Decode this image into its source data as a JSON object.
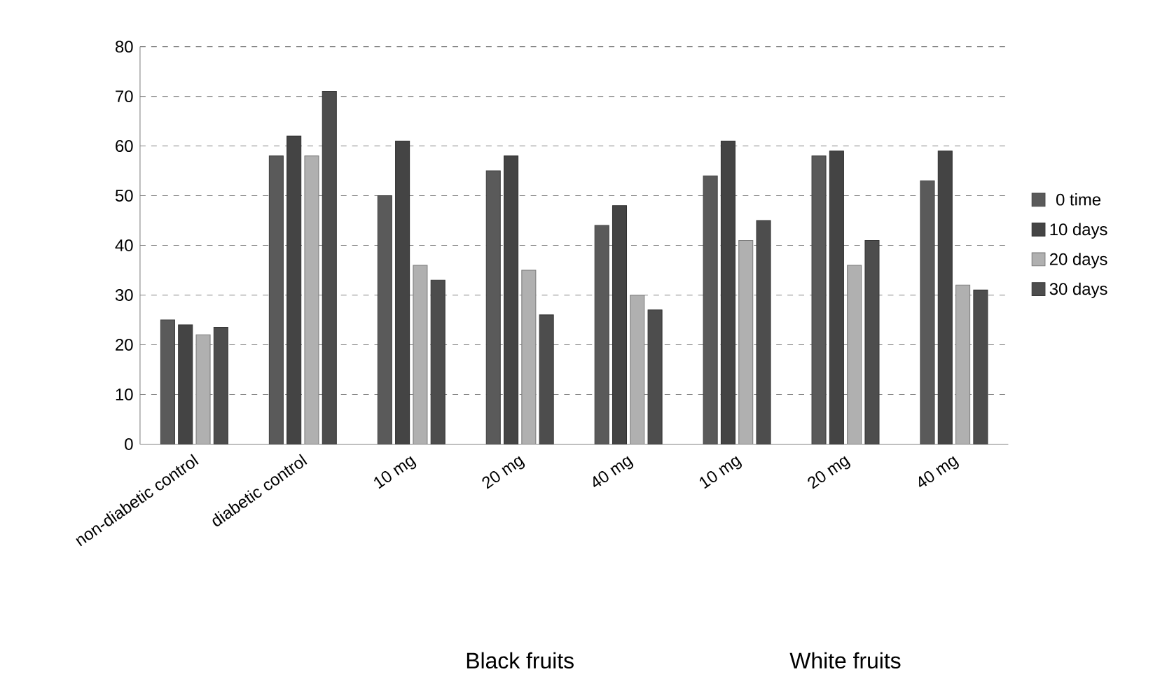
{
  "chart_data": {
    "type": "bar",
    "categories": [
      "non-diabetic control",
      "diabetic control",
      "10 mg",
      "20 mg",
      "40 mg",
      "10 mg",
      "20 mg",
      "40 mg"
    ],
    "series": [
      {
        "name": "0 time",
        "color": "#5a5a5a",
        "values": [
          25,
          58,
          50,
          55,
          44,
          54,
          58,
          53
        ]
      },
      {
        "name": "10 days",
        "color": "#444444",
        "values": [
          24,
          62,
          61,
          58,
          48,
          61,
          59,
          59
        ]
      },
      {
        "name": "20 days",
        "color": "#b0b0b0",
        "values": [
          22,
          58,
          36,
          35,
          30,
          41,
          36,
          32
        ]
      },
      {
        "name": "30 days",
        "color": "#4d4d4d",
        "values": [
          23.5,
          71,
          33,
          26,
          27,
          45,
          41,
          31
        ]
      }
    ],
    "ylim": [
      0,
      80
    ],
    "yticks": [
      0,
      10,
      20,
      30,
      40,
      50,
      60,
      70,
      80
    ],
    "grid": "y",
    "legend": "right",
    "annotations": [
      "Black fruits",
      "White fruits"
    ]
  }
}
